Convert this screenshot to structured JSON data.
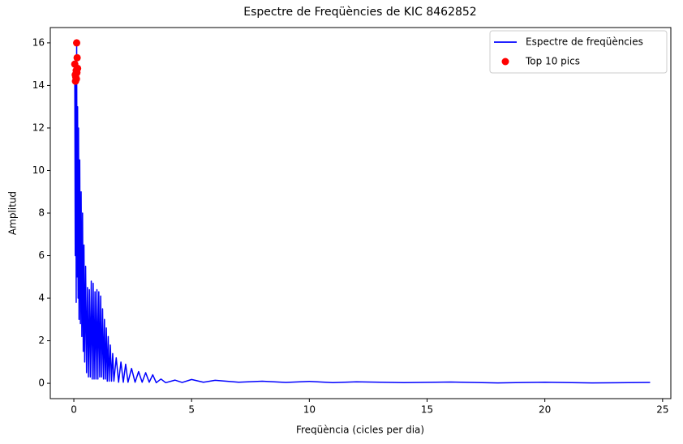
{
  "chart_data": {
    "type": "line",
    "title": "Espectre de Freqüències de KIC 8462852",
    "x_label": "Freqüència (cicles per dia)",
    "y_label": "Amplitud",
    "xlim": [
      -1.0,
      25.35
    ],
    "ylim": [
      -0.72,
      16.72
    ],
    "xticks": [
      0,
      5,
      10,
      15,
      20,
      25
    ],
    "yticks": [
      0,
      2,
      4,
      6,
      8,
      10,
      12,
      14,
      16
    ],
    "legend": "upper right",
    "series": [
      {
        "name": "Espectre de freqüències",
        "color": "#0000ff",
        "style": "line",
        "x": [
          0.04,
          0.06,
          0.08,
          0.1,
          0.12,
          0.14,
          0.16,
          0.18,
          0.2,
          0.22,
          0.25,
          0.28,
          0.31,
          0.34,
          0.37,
          0.4,
          0.43,
          0.46,
          0.5,
          0.54,
          0.58,
          0.62,
          0.66,
          0.7,
          0.74,
          0.78,
          0.82,
          0.86,
          0.9,
          0.94,
          0.98,
          1.02,
          1.06,
          1.1,
          1.14,
          1.18,
          1.22,
          1.26,
          1.3,
          1.34,
          1.38,
          1.42,
          1.46,
          1.5,
          1.55,
          1.6,
          1.65,
          1.7,
          1.8,
          1.9,
          2.0,
          2.1,
          2.2,
          2.3,
          2.45,
          2.6,
          2.75,
          2.9,
          3.05,
          3.2,
          3.35,
          3.5,
          3.7,
          3.9,
          4.3,
          4.6,
          5.0,
          5.5,
          6.0,
          7,
          8,
          9,
          10,
          11,
          12,
          14,
          16,
          18,
          20,
          22,
          24.47
        ],
        "values": [
          14.3,
          6,
          15.2,
          3.8,
          16.0,
          5,
          13,
          4,
          12,
          3,
          10.5,
          2.8,
          9,
          2.2,
          8,
          1.5,
          6.5,
          1.0,
          5.5,
          0.5,
          4.5,
          0.3,
          4.4,
          0.3,
          4.8,
          0.2,
          4.7,
          0.2,
          4.3,
          0.2,
          4.4,
          0.2,
          4.3,
          0.3,
          4.1,
          0.3,
          3.5,
          0.2,
          3.0,
          0.2,
          2.6,
          0.1,
          2.2,
          0.1,
          1.8,
          0.1,
          1.4,
          0.1,
          1.2,
          0.05,
          1.0,
          0.05,
          0.9,
          0.05,
          0.7,
          0.05,
          0.55,
          0.05,
          0.5,
          0.05,
          0.4,
          0.03,
          0.2,
          0.03,
          0.15,
          0.04,
          0.18,
          0.05,
          0.14,
          0.05,
          0.1,
          0.04,
          0.09,
          0.03,
          0.07,
          0.03,
          0.06,
          0.02,
          0.05,
          0.02,
          0.04
        ]
      },
      {
        "name": "Top 10 pics",
        "color": "#ff0000",
        "style": "markers",
        "x": [
          0.12,
          0.14,
          0.04,
          0.16,
          0.1,
          0.13,
          0.06,
          0.08,
          0.11,
          0.07
        ],
        "values": [
          16.0,
          15.3,
          15.0,
          14.8,
          14.7,
          14.6,
          14.5,
          14.4,
          14.3,
          14.2
        ]
      }
    ]
  }
}
